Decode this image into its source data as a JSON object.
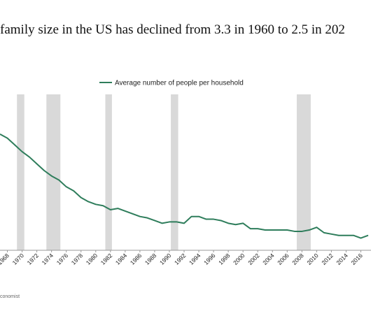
{
  "chart_data": {
    "type": "line",
    "title": "family size in the US has declined from 3.3 in 1960 to 2.5 in 202",
    "source": "conomist",
    "x": [
      1967,
      1968,
      1969,
      1970,
      1971,
      1972,
      1973,
      1974,
      1975,
      1976,
      1977,
      1978,
      1979,
      1980,
      1981,
      1982,
      1983,
      1984,
      1985,
      1986,
      1987,
      1988,
      1989,
      1990,
      1991,
      1992,
      1993,
      1994,
      1995,
      1996,
      1997,
      1998,
      1999,
      2000,
      2001,
      2002,
      2003,
      2004,
      2005,
      2006,
      2007,
      2008,
      2009,
      2010,
      2011,
      2012,
      2013,
      2014,
      2015,
      2016,
      2017
    ],
    "series": [
      {
        "name": "Average number of people per household",
        "color": "#2e7d5b",
        "values": [
          3.28,
          3.25,
          3.2,
          3.15,
          3.11,
          3.06,
          3.01,
          2.97,
          2.94,
          2.89,
          2.86,
          2.81,
          2.78,
          2.76,
          2.75,
          2.72,
          2.73,
          2.71,
          2.69,
          2.67,
          2.66,
          2.64,
          2.62,
          2.63,
          2.63,
          2.62,
          2.67,
          2.67,
          2.65,
          2.65,
          2.64,
          2.62,
          2.61,
          2.62,
          2.58,
          2.58,
          2.57,
          2.57,
          2.57,
          2.57,
          2.56,
          2.56,
          2.57,
          2.59,
          2.55,
          2.54,
          2.53,
          2.53,
          2.53,
          2.51,
          2.53
        ]
      }
    ],
    "recessions": [
      [
        1969.3,
        1970.3
      ],
      [
        1973.3,
        1975.2
      ],
      [
        1981.3,
        1982.2
      ],
      [
        1990.2,
        1991.2
      ],
      [
        2007.3,
        2009.2
      ]
    ],
    "recession_color": "#d9d9d9",
    "xlim": [
      1966,
      2018
    ],
    "xticks": [
      1968,
      1970,
      1972,
      1974,
      1976,
      1978,
      1980,
      1982,
      1984,
      1986,
      1988,
      1990,
      1992,
      1994,
      1996,
      1998,
      2000,
      2002,
      2004,
      2006,
      2008,
      2010,
      2012,
      2014,
      2016
    ],
    "ylim": [
      2.42,
      3.6
    ]
  }
}
